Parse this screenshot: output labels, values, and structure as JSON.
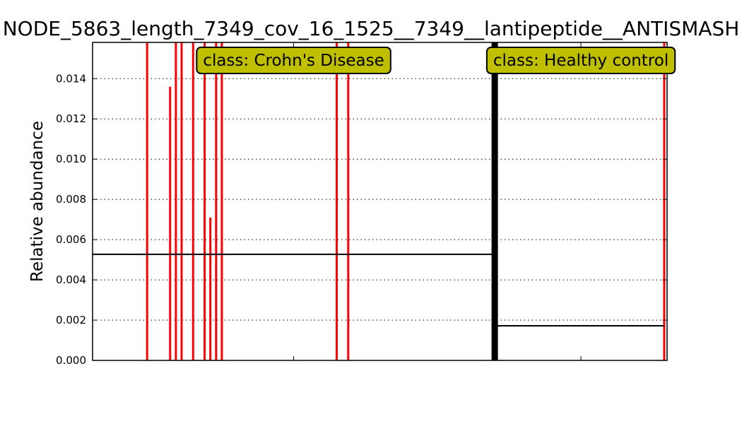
{
  "chart_data": {
    "type": "bar",
    "title": "NODE_5863_length_7349_cov_16_1525__7349__lantipeptide__ANTISMASH",
    "xlabel": "",
    "ylabel": "Relative abundance",
    "ylim": [
      0,
      0.0158
    ],
    "yticks": [
      "0.000",
      "0.002",
      "0.004",
      "0.006",
      "0.008",
      "0.010",
      "0.012",
      "0.014"
    ],
    "grid": "horizontal dotted",
    "n_samples": 100,
    "bar_color": "#ff0000",
    "mean_line_color": "#000000",
    "separator_color": "#000000",
    "class_box_color": "#bfbf00",
    "classes": [
      {
        "name": "class: Crohn's Disease",
        "start": 0,
        "end": 69,
        "mean": 0.00527
      },
      {
        "name": "class: Healthy control",
        "start": 70,
        "end": 99,
        "mean": 0.00172
      }
    ],
    "bars": [
      {
        "sample": 9,
        "value": 0.0158
      },
      {
        "sample": 13,
        "value": 0.0136
      },
      {
        "sample": 14,
        "value": 0.0158
      },
      {
        "sample": 15,
        "value": 0.0158
      },
      {
        "sample": 17,
        "value": 0.0158
      },
      {
        "sample": 19,
        "value": 0.0158
      },
      {
        "sample": 20,
        "value": 0.0071
      },
      {
        "sample": 21,
        "value": 0.0158
      },
      {
        "sample": 22,
        "value": 0.0158
      },
      {
        "sample": 42,
        "value": 0.0158
      },
      {
        "sample": 44,
        "value": 0.0158
      },
      {
        "sample": 99,
        "value": 0.0158
      }
    ]
  }
}
